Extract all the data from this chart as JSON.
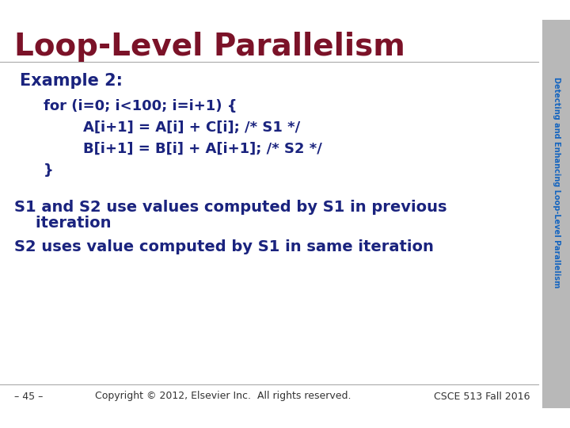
{
  "title": "Loop-Level Parallelism",
  "title_color": "#7B1228",
  "title_fontsize": 28,
  "sidebar_text": "Detecting and Enhancing Loop-Level Parallelism",
  "sidebar_color": "#1565C0",
  "sidebar_bg": "#B8B8B8",
  "bg_color": "#FFFFFF",
  "example_label": "Example 2:",
  "example_color": "#1A237E",
  "example_fontsize": 15,
  "code_line1": "for (i=0; i<100; i=i+1) {",
  "code_line2": "A[i+1] = A[i] + C[i]; /* S1 */",
  "code_line3": "B[i+1] = B[i] + A[i+1]; /* S2 */",
  "code_line4": "}",
  "code_color": "#1A237E",
  "code_fontsize": 13,
  "bullet1_line1": "S1 and S2 use values computed by S1 in previous",
  "bullet1_line2": "    iteration",
  "bullet2": "S2 uses value computed by S1 in same iteration",
  "bullet_color": "#1A237E",
  "bullet_fontsize": 14,
  "footer_left": "– 45 –",
  "footer_copy": "Copyright © 2012, Elsevier Inc.  All rights reserved.",
  "footer_right": "CSCE 513 Fall 2016",
  "footer_color": "#333333",
  "footer_fontsize": 9
}
